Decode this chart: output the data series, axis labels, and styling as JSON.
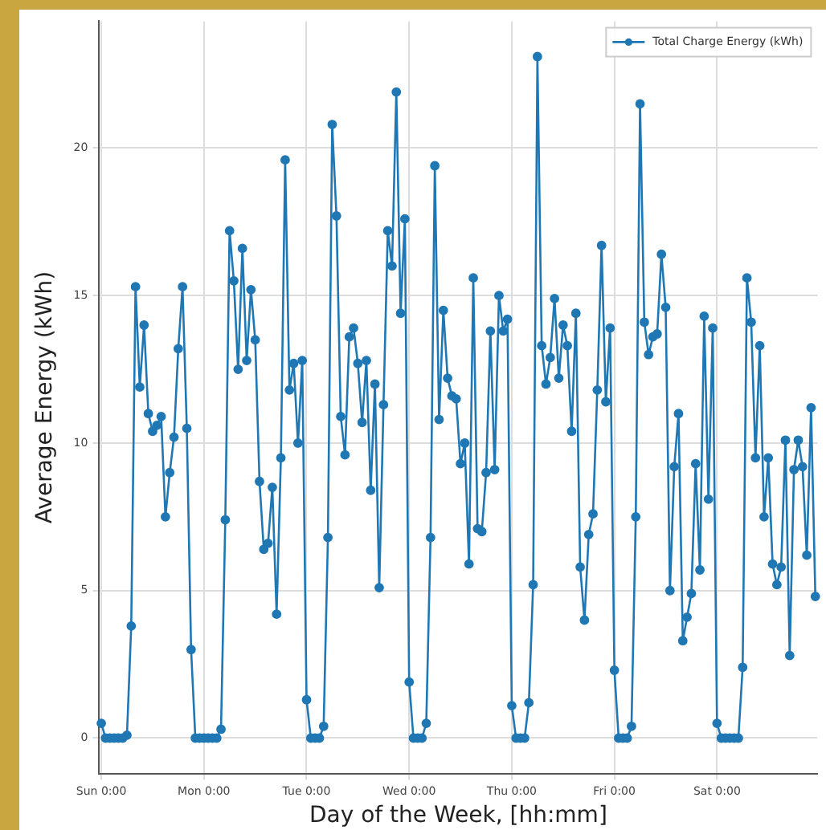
{
  "chart_data": {
    "type": "line",
    "xlabel": "Day of the Week, [hh:mm]",
    "ylabel": "Average Energy (kWh)",
    "categories": [
      "Sun 0:00",
      null,
      null,
      null,
      null,
      null,
      null,
      null,
      null,
      null,
      null,
      null,
      null,
      null,
      null,
      null,
      null,
      null,
      null,
      null,
      null,
      null,
      null,
      null,
      "Mon 0:00",
      null,
      null,
      null,
      null,
      null,
      null,
      null,
      null,
      null,
      null,
      null,
      null,
      null,
      null,
      null,
      null,
      null,
      null,
      null,
      null,
      null,
      null,
      null,
      "Tue 0:00",
      null,
      null,
      null,
      null,
      null,
      null,
      null,
      null,
      null,
      null,
      null,
      null,
      null,
      null,
      null,
      null,
      null,
      null,
      null,
      null,
      null,
      null,
      null,
      "Wed 0:00",
      null,
      null,
      null,
      null,
      null,
      null,
      null,
      null,
      null,
      null,
      null,
      null,
      null,
      null,
      null,
      null,
      null,
      null,
      null,
      null,
      null,
      null,
      null,
      "Thu 0:00",
      null,
      null,
      null,
      null,
      null,
      null,
      null,
      null,
      null,
      null,
      null,
      null,
      null,
      null,
      null,
      null,
      null,
      null,
      null,
      null,
      null,
      null,
      null,
      "Fri 0:00",
      null,
      null,
      null,
      null,
      null,
      null,
      null,
      null,
      null,
      null,
      null,
      null,
      null,
      null,
      null,
      null,
      null,
      null,
      null,
      null,
      null,
      null,
      null,
      "Sat 0:00",
      null,
      null,
      null,
      null,
      null,
      null,
      null,
      null,
      null,
      null,
      null,
      null,
      null,
      null,
      null,
      null,
      null,
      null,
      null,
      null,
      null,
      null,
      null
    ],
    "series": [
      {
        "name": "Total Charge Energy (kWh)",
        "color": "#1f77b4",
        "values": [
          0.5,
          0,
          0,
          0,
          0,
          0,
          0.1,
          3.8,
          15.3,
          11.9,
          14.0,
          11.0,
          10.4,
          10.6,
          10.9,
          7.5,
          9.0,
          10.2,
          13.2,
          15.3,
          10.5,
          3.0,
          0,
          0,
          0,
          0,
          0,
          0,
          0.3,
          7.4,
          17.2,
          15.5,
          12.5,
          16.6,
          12.8,
          15.2,
          13.5,
          8.7,
          6.4,
          6.6,
          8.5,
          4.2,
          9.5,
          19.6,
          11.8,
          12.7,
          10.0,
          12.8,
          1.3,
          0,
          0,
          0,
          0.4,
          6.8,
          20.8,
          17.7,
          10.9,
          9.6,
          13.6,
          13.9,
          12.7,
          10.7,
          12.8,
          8.4,
          12.0,
          5.1,
          11.3,
          17.2,
          16.0,
          21.9,
          14.4,
          17.6,
          1.9,
          0,
          0,
          0,
          0.5,
          6.8,
          19.4,
          10.8,
          14.5,
          12.2,
          11.6,
          11.5,
          9.3,
          10.0,
          5.9,
          15.6,
          7.1,
          7.0,
          9.0,
          13.8,
          9.1,
          15.0,
          13.8,
          14.2,
          1.1,
          0,
          0,
          0,
          1.2,
          5.2,
          23.1,
          13.3,
          12.0,
          12.9,
          14.9,
          12.2,
          14.0,
          13.3,
          10.4,
          14.4,
          5.8,
          4.0,
          6.9,
          7.6,
          11.8,
          16.7,
          11.4,
          13.9,
          2.3,
          0,
          0,
          0,
          0.4,
          7.5,
          21.5,
          14.1,
          13.0,
          13.6,
          13.7,
          16.4,
          14.6,
          5.0,
          9.2,
          11.0,
          3.3,
          4.1,
          4.9,
          9.3,
          5.7,
          14.3,
          8.1,
          13.9,
          0.5,
          0,
          0,
          0,
          0,
          0,
          2.4,
          15.6,
          14.1,
          9.5,
          13.3,
          7.5,
          9.5,
          5.9,
          5.2,
          5.8,
          10.1,
          2.8,
          9.1,
          10.1,
          9.2,
          6.2,
          11.2,
          4.8
        ]
      }
    ],
    "ylim": [
      -1.2,
      24.3
    ],
    "yticks": [
      0,
      5,
      10,
      15,
      20
    ],
    "grid": true,
    "legend": "top right",
    "marker": "circle",
    "line_style": "solid"
  }
}
